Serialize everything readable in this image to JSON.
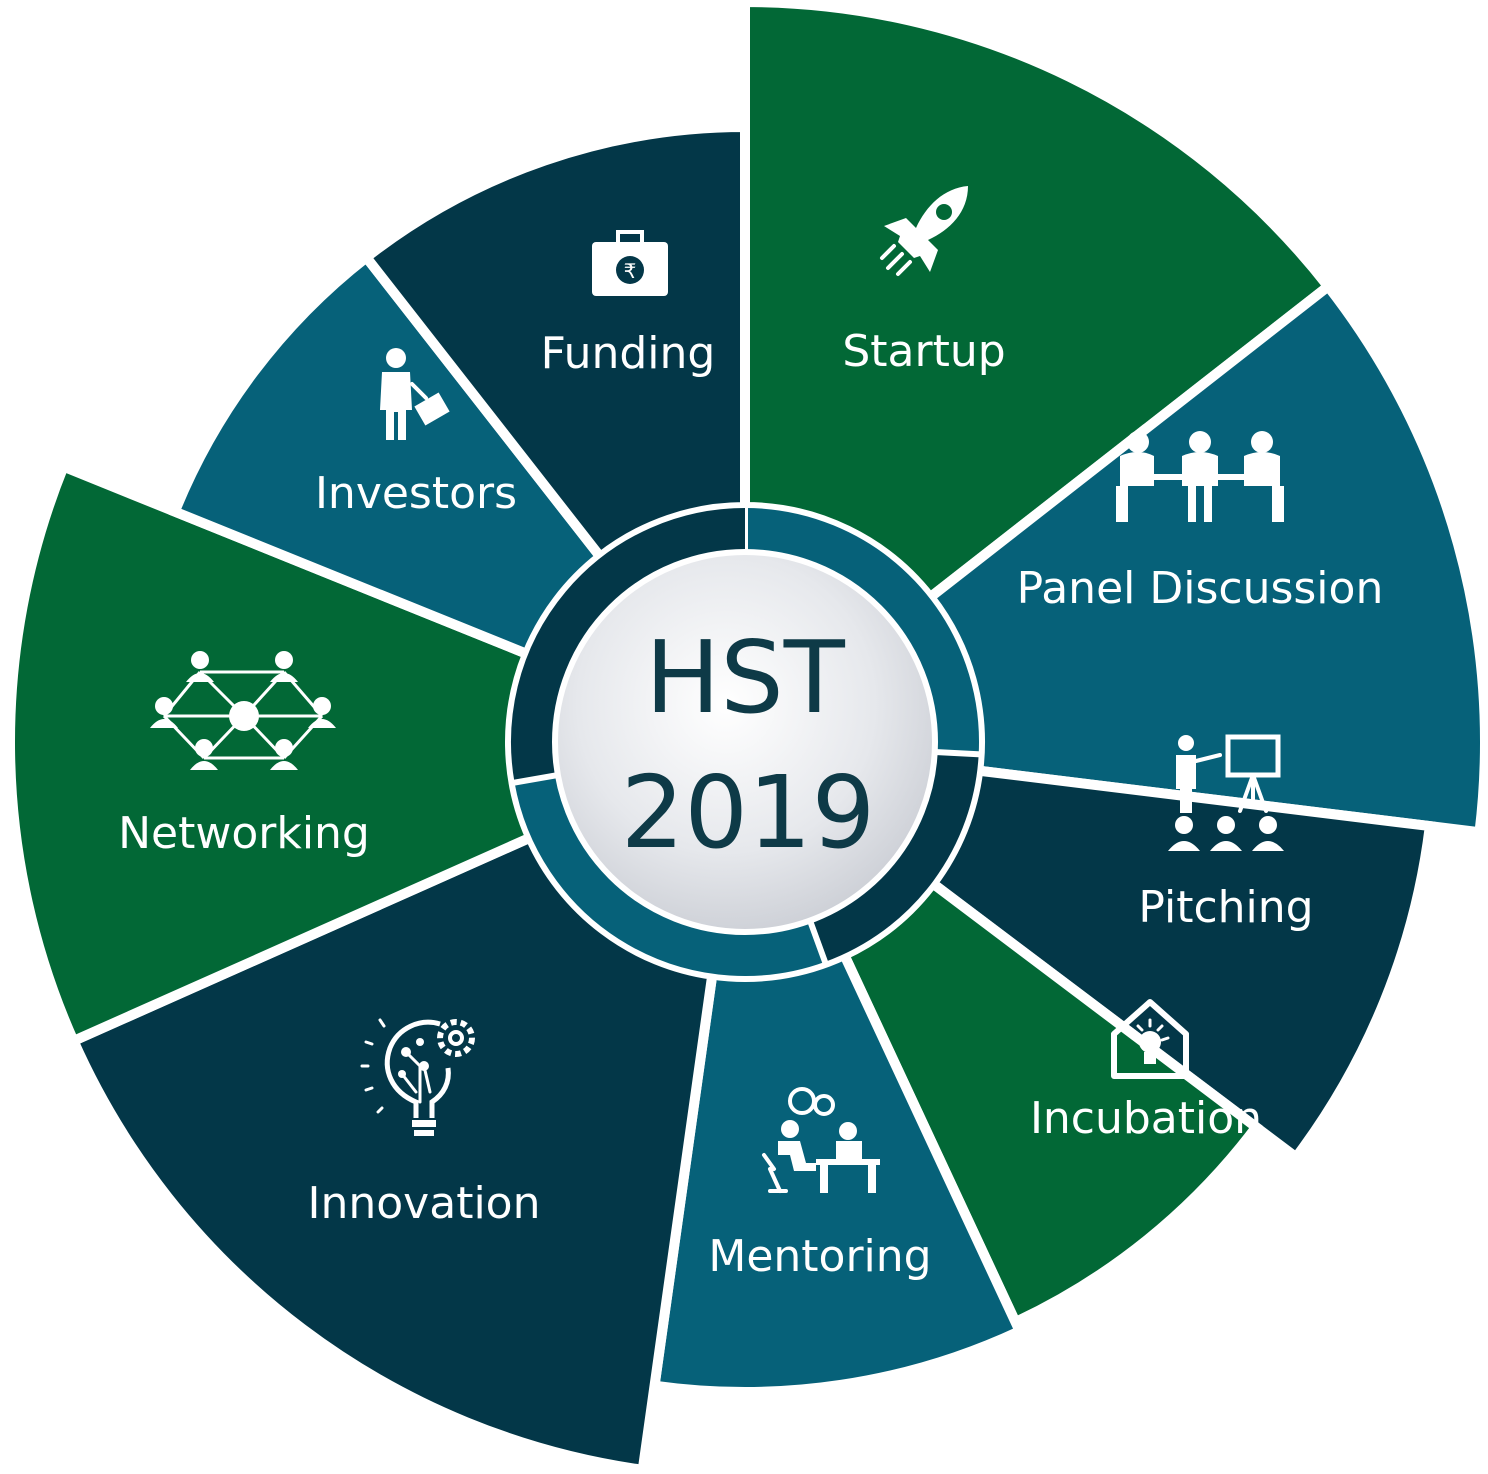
{
  "center": {
    "line1": "HST",
    "line2": "2019"
  },
  "colors": {
    "green": "#026836",
    "teal": "#066179",
    "navy": "#033748",
    "center_fill": "#e8eaee",
    "center_text": "#0e3a47",
    "gap": "#ffffff"
  },
  "segments": [
    {
      "label": "Startup",
      "icon": "rocket-icon",
      "color": "green"
    },
    {
      "label": "Panel Discussion",
      "icon": "meeting-table-icon",
      "color": "teal"
    },
    {
      "label": "Pitching",
      "icon": "presentation-board-icon",
      "color": "navy"
    },
    {
      "label": "Incubation",
      "icon": "house-lightbulb-icon",
      "color": "green"
    },
    {
      "label": "Mentoring",
      "icon": "mentor-desk-icon",
      "color": "teal"
    },
    {
      "label": "Innovation",
      "icon": "bulb-gear-icon",
      "color": "navy"
    },
    {
      "label": "Networking",
      "icon": "people-network-icon",
      "color": "green"
    },
    {
      "label": "Investors",
      "icon": "businessman-briefcase-icon",
      "color": "teal"
    },
    {
      "label": "Funding",
      "icon": "rupee-briefcase-icon",
      "color": "navy"
    }
  ]
}
